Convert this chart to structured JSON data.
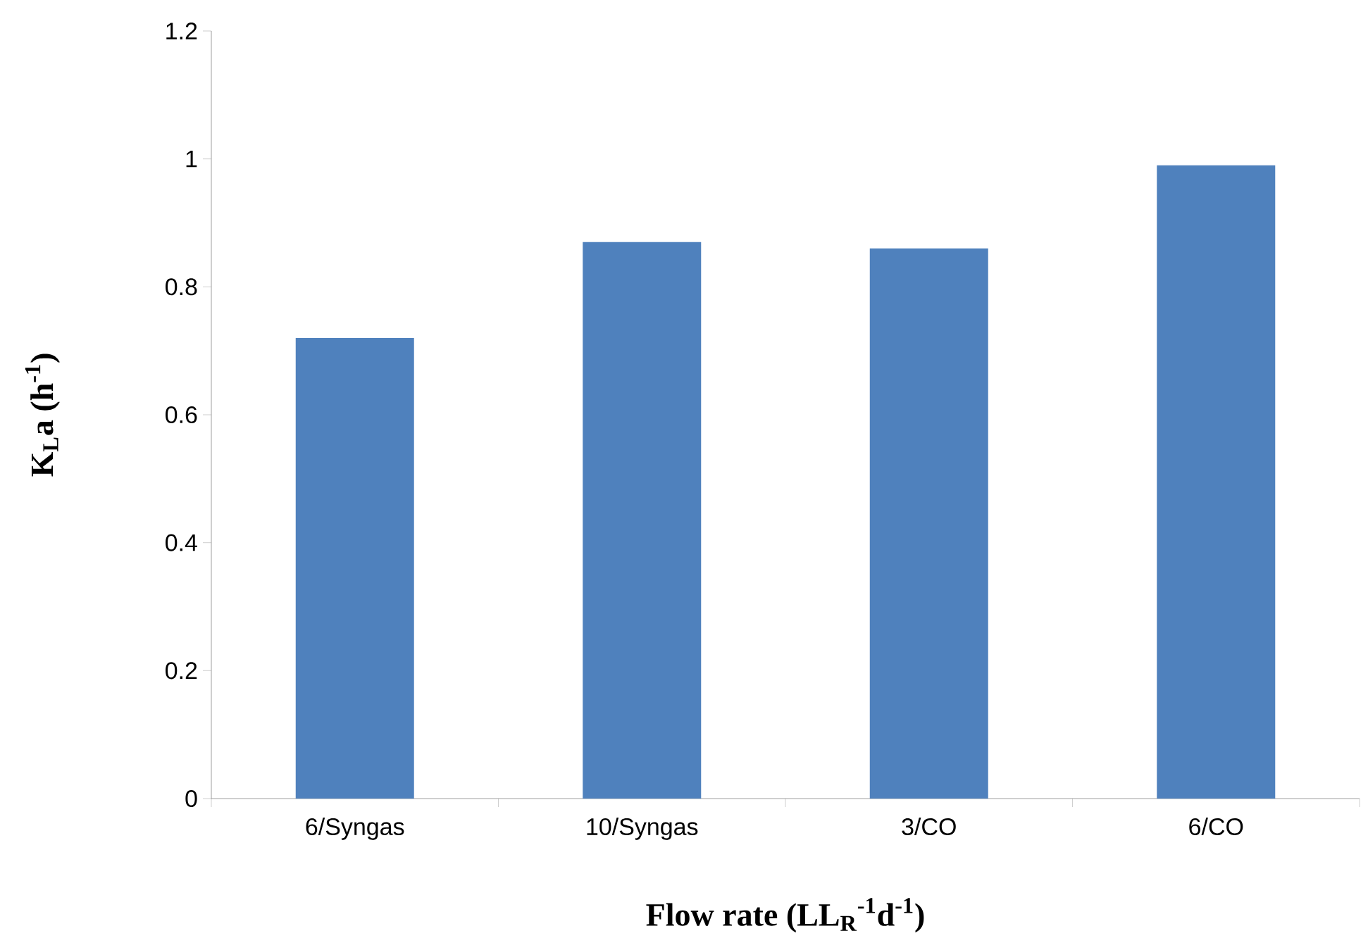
{
  "chart_data": {
    "type": "bar",
    "xlabel": "Flow rate (LL$_{R}$$^{-1}$d$^{-1}$)",
    "ylabel": "K$_{L}$a  (h$^{-1}$)",
    "categories": [
      "6/Syngas",
      "10/Syngas",
      "3/CO",
      "6/CO"
    ],
    "values": [
      0.72,
      0.87,
      0.86,
      0.99
    ],
    "color": "#4f81bd",
    "ylim": [
      0,
      1.2
    ],
    "yticks": [
      0,
      0.2,
      0.4,
      0.6,
      0.8,
      1,
      1.2
    ]
  }
}
